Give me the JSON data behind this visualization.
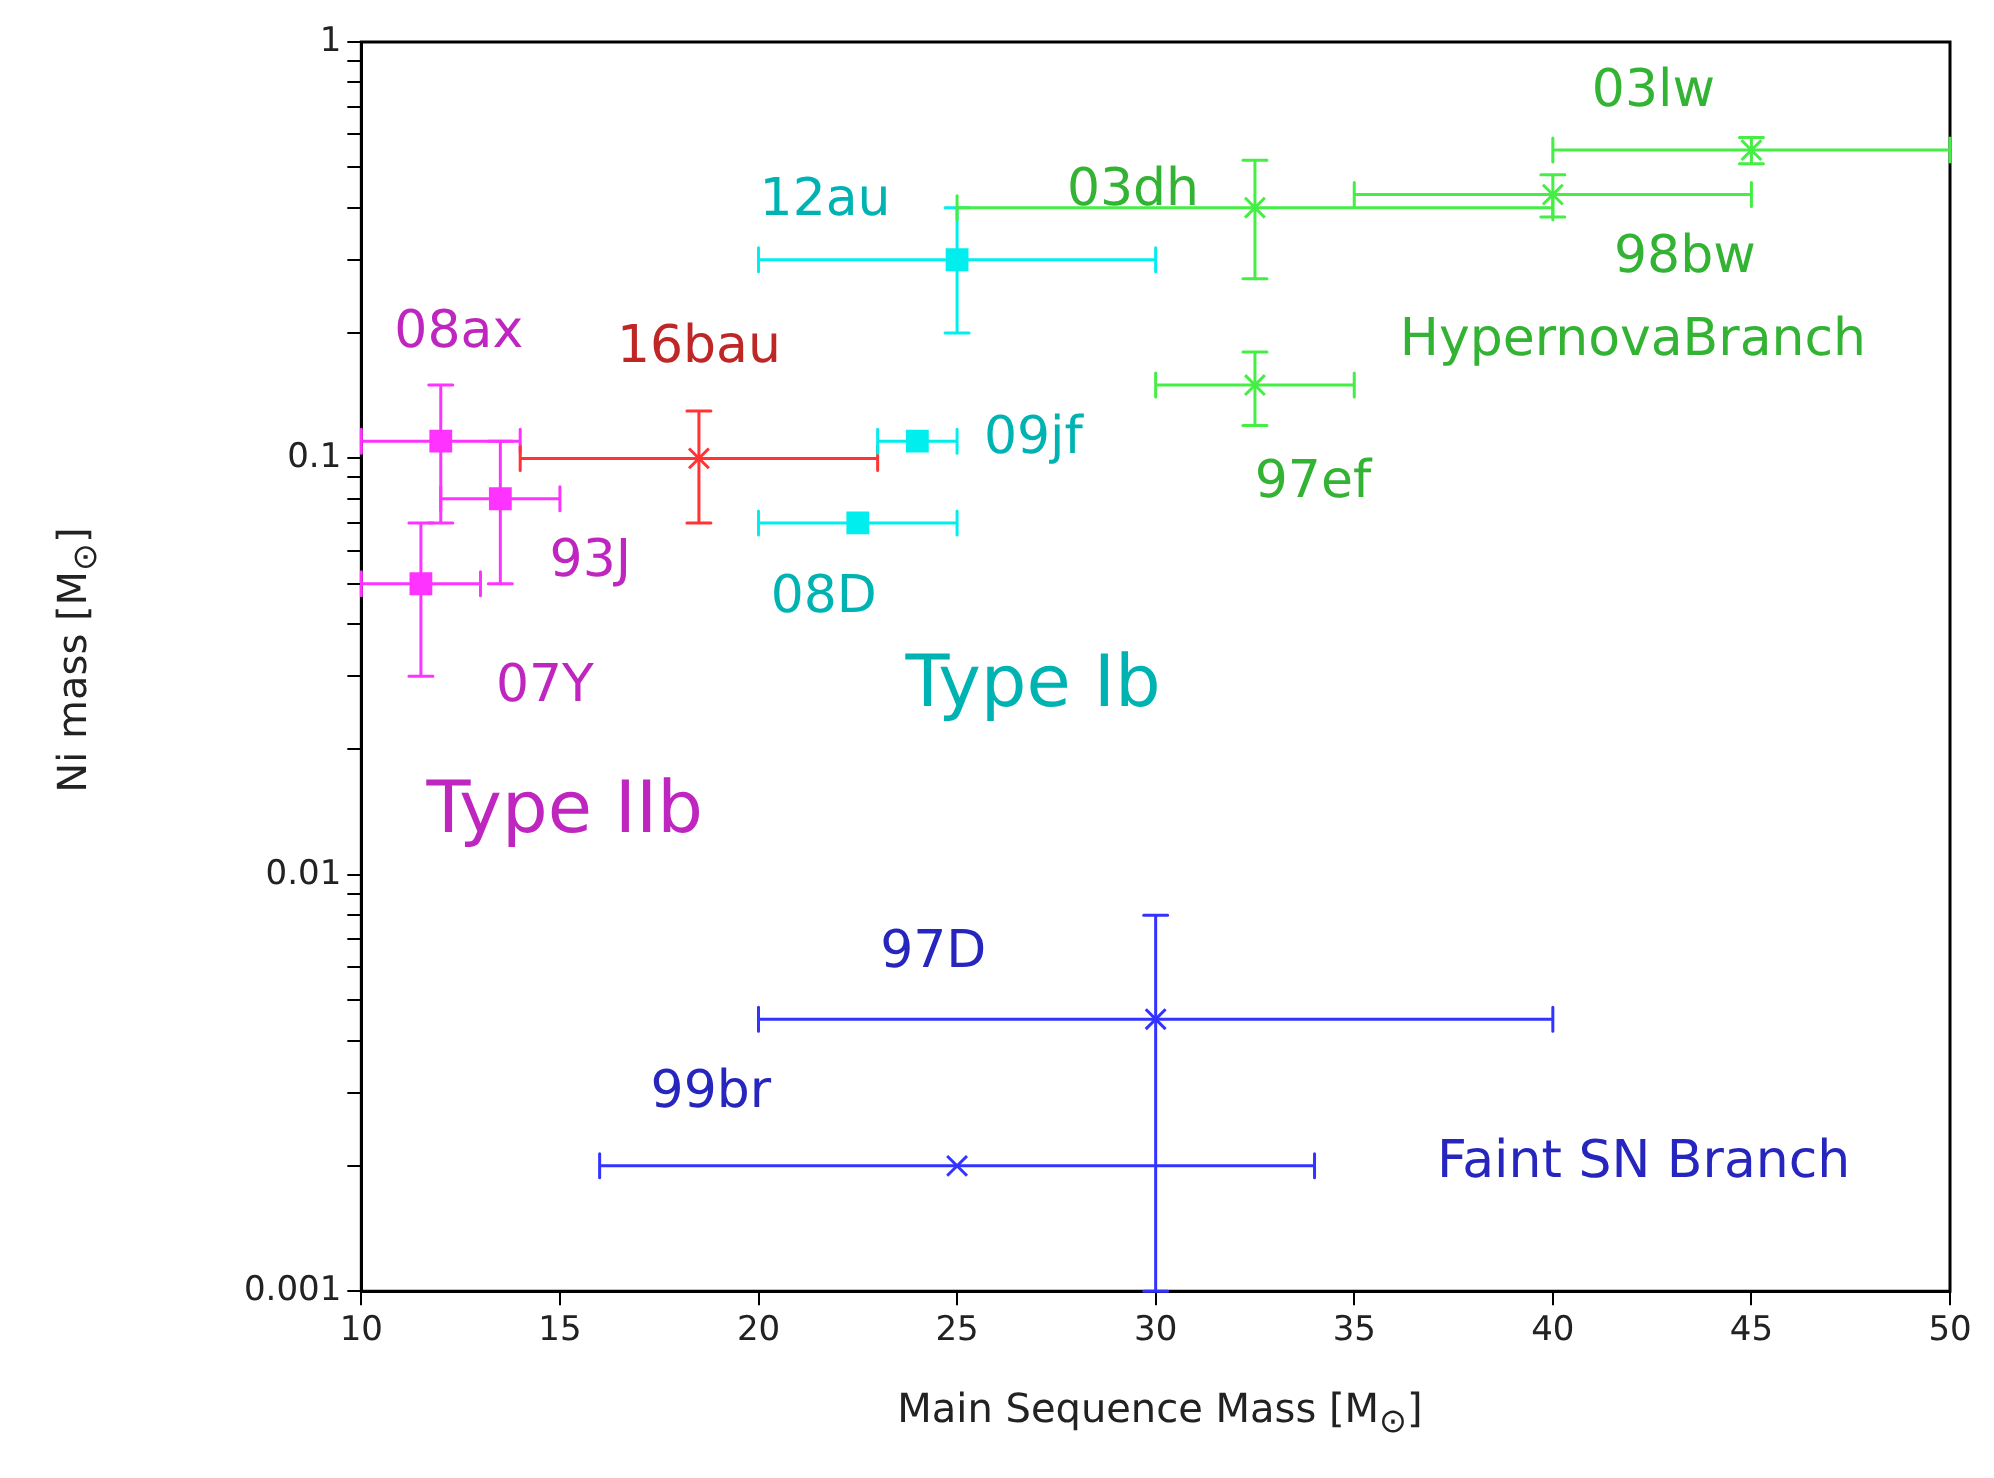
{
  "chart_data": {
    "type": "scatter",
    "xlabel": "Main Sequence Mass  [M$_{⊙}$]",
    "ylabel": "Ni mass  [M$_{⊙}$]",
    "xlim": [
      10,
      50
    ],
    "xticks": [
      10,
      15,
      20,
      25,
      30,
      35,
      40,
      45,
      50
    ],
    "ylim": [
      0.001,
      1
    ],
    "yticks": [
      0.001,
      {
        "value": 0.002,
        "label": null
      },
      {
        "value": 0.003,
        "label": null
      },
      {
        "value": 0.004,
        "label": null
      },
      {
        "value": 0.005,
        "label": null
      },
      {
        "value": 0.006,
        "label": null
      },
      {
        "value": 0.007,
        "label": null
      },
      {
        "value": 0.008,
        "label": null
      },
      {
        "value": 0.009,
        "label": null
      },
      0.01,
      {
        "value": 0.02,
        "label": null
      },
      {
        "value": 0.03,
        "label": null
      },
      {
        "value": 0.04,
        "label": null
      },
      {
        "value": 0.05,
        "label": null
      },
      {
        "value": 0.06,
        "label": null
      },
      {
        "value": 0.07,
        "label": null
      },
      {
        "value": 0.08,
        "label": null
      },
      {
        "value": 0.09,
        "label": null
      },
      0.1,
      {
        "value": 0.2,
        "label": null
      },
      {
        "value": 0.3,
        "label": null
      },
      {
        "value": 0.4,
        "label": null
      },
      {
        "value": 0.5,
        "label": null
      },
      {
        "value": 0.6,
        "label": null
      },
      {
        "value": 0.7,
        "label": null
      },
      {
        "value": 0.8,
        "label": null
      },
      {
        "value": 0.9,
        "label": null
      },
      1
    ],
    "log": "y",
    "grid": false,
    "legend": false,
    "series": [
      {
        "name": "Type IIb",
        "color": "#ff33ff",
        "marker": "square",
        "x": [
          12,
          13.5,
          11.5
        ],
        "values": [
          0.11,
          0.08,
          0.05
        ],
        "errors": [
          [
            0.07,
            0.15
          ],
          [
            0.05,
            0.11
          ],
          [
            0.03,
            0.07
          ]
        ],
        "xerrors": [
          [
            10,
            14
          ],
          [
            12,
            15
          ],
          [
            10,
            13
          ]
        ]
      },
      {
        "color": "#ff3333",
        "marker": "cross",
        "x": [
          18.5
        ],
        "values": [
          0.1
        ],
        "errors": [
          [
            0.07,
            0.13
          ]
        ],
        "xerrors": [
          [
            14,
            23
          ]
        ]
      },
      {
        "name": "Type Ib",
        "color": "#00eeee",
        "marker": "square",
        "x": [
          25,
          24,
          22.5
        ],
        "values": [
          0.3,
          0.11,
          0.07
        ],
        "errors": [
          [
            0.2,
            0.4
          ],
          null,
          null
        ],
        "xerrors": [
          [
            20,
            30
          ],
          [
            23,
            25
          ],
          [
            20,
            25
          ]
        ]
      },
      {
        "name": "HypernovaBranch",
        "color": "#44ee44",
        "marker": "cross",
        "x": [
          32.5,
          40,
          45,
          32.5
        ],
        "values": [
          0.4,
          0.43,
          0.55,
          0.15
        ],
        "errors": [
          [
            0.27,
            0.52
          ],
          [
            0.38,
            0.48
          ],
          [
            0.51,
            0.59
          ],
          [
            0.12,
            0.18
          ]
        ],
        "xerrors": [
          [
            25,
            40
          ],
          [
            35,
            45
          ],
          [
            40,
            50
          ],
          [
            30,
            35
          ]
        ]
      },
      {
        "name": "Faint SN Branch",
        "color": "#3333ff",
        "marker": "cross",
        "x": [
          30,
          25
        ],
        "values": [
          0.0045,
          0.002
        ],
        "errors": [
          [
            0.001,
            0.008
          ],
          null
        ],
        "xerrors": [
          [
            20,
            40
          ],
          [
            16,
            34
          ]
        ]
      }
    ],
    "annotations": [
      {
        "text": "08ax",
        "x": 12,
        "y": 0.11
      },
      {
        "text": "93J",
        "x": 13.5,
        "y": 0.08
      },
      {
        "text": "07Y",
        "x": 11.5,
        "y": 0.05
      },
      {
        "text": "16bau",
        "x": 18.5,
        "y": 0.1
      },
      {
        "text": "12au",
        "x": 25,
        "y": 0.3
      },
      {
        "text": "09jf",
        "x": 24,
        "y": 0.11
      },
      {
        "text": "08D",
        "x": 22.5,
        "y": 0.07
      },
      {
        "text": "03dh",
        "x": 32.5,
        "y": 0.4
      },
      {
        "text": "98bw",
        "x": 40,
        "y": 0.43
      },
      {
        "text": "03lw",
        "x": 45,
        "y": 0.55
      },
      {
        "text": "97ef",
        "x": 32.5,
        "y": 0.15
      },
      {
        "text": "97D",
        "x": 24.4,
        "y": 0.0045
      },
      {
        "text": "99br",
        "x": 18.8,
        "y": 0.002
      }
    ]
  }
}
